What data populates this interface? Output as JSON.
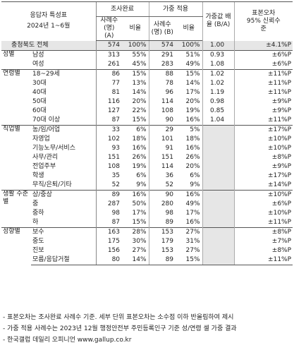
{
  "header": {
    "title_line1": "응답자 특성표",
    "title_line2": "2024년 1~6월",
    "group_survey": "조사완료",
    "group_weighted": "가중 적용",
    "count_a": "사례수 (명) (A)",
    "ratio": "비율",
    "count_b": "사례수 (명) (B)",
    "ratio2": "비율",
    "weight_ratio": "가중값 배율 (B/A)",
    "error_label": "표본오차 95% 신뢰수준"
  },
  "total": {
    "label": "충청북도 전체",
    "a": "574",
    "pa": "100%",
    "b": "574",
    "pb": "100%",
    "w": "1.00",
    "e": "±4.1%P"
  },
  "groups": [
    {
      "name": "성별",
      "rows": [
        {
          "label": "남성",
          "a": "313",
          "pa": "55%",
          "b": "291",
          "pb": "51%",
          "w": "0.93",
          "e": "±6%P"
        },
        {
          "label": "여성",
          "a": "261",
          "pa": "45%",
          "b": "283",
          "pb": "49%",
          "w": "1.08",
          "e": "±6%P"
        }
      ]
    },
    {
      "name": "연령별",
      "rows": [
        {
          "label": "18~29세",
          "a": "86",
          "pa": "15%",
          "b": "88",
          "pb": "15%",
          "w": "1.02",
          "e": "±11%P"
        },
        {
          "label": "30대",
          "a": "77",
          "pa": "13%",
          "b": "78",
          "pb": "14%",
          "w": "1.02",
          "e": "±11%P"
        },
        {
          "label": "40대",
          "a": "81",
          "pa": "14%",
          "b": "96",
          "pb": "17%",
          "w": "1.19",
          "e": "±11%P"
        },
        {
          "label": "50대",
          "a": "116",
          "pa": "20%",
          "b": "114",
          "pb": "20%",
          "w": "0.98",
          "e": "±9%P"
        },
        {
          "label": "60대",
          "a": "127",
          "pa": "22%",
          "b": "108",
          "pb": "19%",
          "w": "0.85",
          "e": "±9%P"
        },
        {
          "label": "70대 이상",
          "a": "87",
          "pa": "15%",
          "b": "90",
          "pb": "16%",
          "w": "1.04",
          "e": "±11%P"
        }
      ]
    },
    {
      "name": "직업별",
      "rows": [
        {
          "label": "농/임/어업",
          "a": "33",
          "pa": "6%",
          "b": "29",
          "pb": "5%",
          "w": "",
          "e": "±17%P"
        },
        {
          "label": "자영업",
          "a": "102",
          "pa": "18%",
          "b": "101",
          "pb": "18%",
          "w": "",
          "e": "±10%P"
        },
        {
          "label": "기능노무/서비스",
          "a": "93",
          "pa": "16%",
          "b": "91",
          "pb": "16%",
          "w": "",
          "e": "±10%P"
        },
        {
          "label": "사무/관리",
          "a": "151",
          "pa": "26%",
          "b": "151",
          "pb": "26%",
          "w": "",
          "e": "±8%P"
        },
        {
          "label": "전업주부",
          "a": "108",
          "pa": "19%",
          "b": "114",
          "pb": "20%",
          "w": "",
          "e": "±9%P"
        },
        {
          "label": "학생",
          "a": "35",
          "pa": "6%",
          "b": "36",
          "pb": "6%",
          "w": "",
          "e": "±17%P"
        },
        {
          "label": "무직/은퇴/기타",
          "a": "52",
          "pa": "9%",
          "b": "52",
          "pb": "9%",
          "w": "",
          "e": "±14%P"
        }
      ]
    },
    {
      "name": "생활 수준별",
      "rows": [
        {
          "label": "상/중상",
          "a": "89",
          "pa": "16%",
          "b": "90",
          "pb": "16%",
          "w": "",
          "e": "±10%P"
        },
        {
          "label": "중",
          "a": "287",
          "pa": "50%",
          "b": "280",
          "pb": "49%",
          "w": "",
          "e": "±6%P"
        },
        {
          "label": "중하",
          "a": "98",
          "pa": "17%",
          "b": "98",
          "pb": "17%",
          "w": "",
          "e": "±10%P"
        },
        {
          "label": "하",
          "a": "87",
          "pa": "15%",
          "b": "89",
          "pb": "16%",
          "w": "",
          "e": "±11%P"
        }
      ]
    },
    {
      "name": "성향별",
      "rows": [
        {
          "label": "보수",
          "a": "163",
          "pa": "28%",
          "b": "153",
          "pb": "27%",
          "w": "",
          "e": "±8%P"
        },
        {
          "label": "중도",
          "a": "175",
          "pa": "30%",
          "b": "179",
          "pb": "31%",
          "w": "",
          "e": "±7%P"
        },
        {
          "label": "진보",
          "a": "156",
          "pa": "27%",
          "b": "153",
          "pb": "27%",
          "w": "",
          "e": "±8%P"
        },
        {
          "label": "모름/응답거절",
          "a": "80",
          "pa": "14%",
          "b": "89",
          "pb": "15%",
          "w": "",
          "e": "±11%P"
        }
      ]
    }
  ],
  "notes": [
    "- 표본오차는 조사완료 사례수 기준. 세부 단위 표본오차는 소수점 이하 반올림하여 제시",
    "- 가중 적용 사례수는 2023년 12월 행정안전부 주민등록인구 기준 성/연령 셀 가중 결과",
    "- 한국갤럽 데일리 오피니언 www.gallup.co.kr"
  ]
}
